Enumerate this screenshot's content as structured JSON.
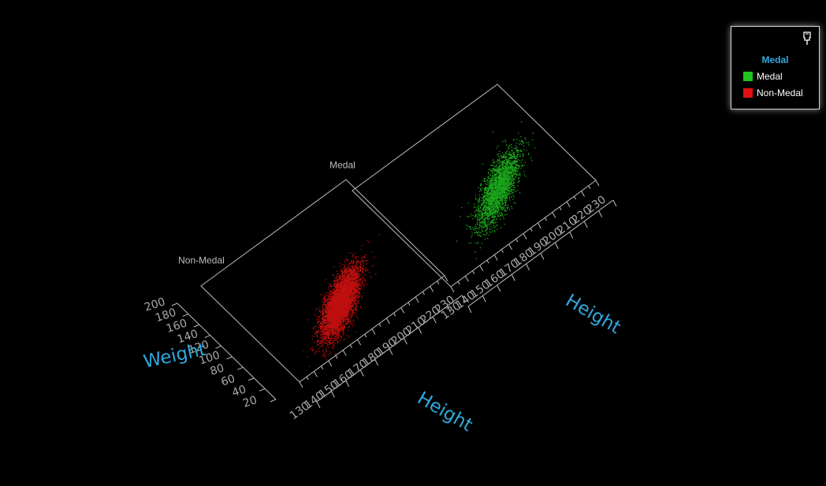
{
  "chart_data": {
    "type": "scatter",
    "facet_by": "Medal",
    "panels": [
      {
        "label": "Non-Medal"
      },
      {
        "label": "Medal"
      }
    ],
    "x_axis": {
      "title": "Height",
      "ticks": [
        130,
        140,
        150,
        160,
        170,
        180,
        190,
        200,
        210,
        220,
        230
      ],
      "range": [
        130,
        230
      ]
    },
    "y_axis": {
      "title": "Weight",
      "ticks": [
        20,
        40,
        60,
        80,
        100,
        120,
        140,
        160,
        180,
        200
      ],
      "range": [
        20,
        200
      ]
    },
    "series": [
      {
        "name": "Medal",
        "color": "#1fc21f",
        "center": {
          "height": 188,
          "weight": 88
        },
        "spread": {
          "height": 11,
          "weight": 16
        },
        "approx_points": 2600
      },
      {
        "name": "Non-Medal",
        "color": "#e01010",
        "center": {
          "height": 178,
          "weight": 73
        },
        "spread": {
          "height": 10,
          "weight": 15
        },
        "approx_points": 5200
      }
    ],
    "grid": false
  },
  "legend": {
    "title": "Medal",
    "pin_icon": "pin-icon",
    "items": [
      {
        "label": "Medal",
        "color": "#1fc21f"
      },
      {
        "label": "Non-Medal",
        "color": "#e01010"
      }
    ]
  }
}
